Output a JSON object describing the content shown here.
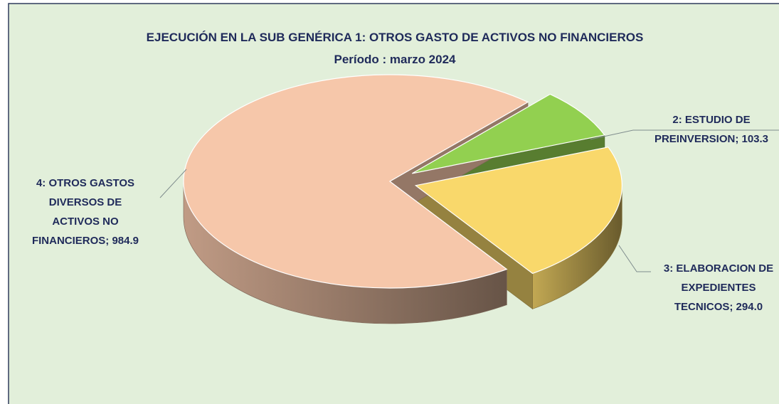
{
  "chart_data": {
    "type": "pie",
    "title": "EJECUCIÓN EN LA SUB GENÉRICA 1: OTROS GASTO DE ACTIVOS NO FINANCIEROS",
    "subtitle": "Período :  marzo 2024",
    "values": [
      103.3,
      294.0,
      984.9
    ],
    "value_labels": [
      "2: ESTUDIO DE PREINVERSION; 103.3",
      "3: ELABORACION DE EXPEDIENTES TECNICOS; 294.0",
      "4: OTROS GASTOS DIVERSOS DE ACTIVOS NO FINANCIEROS; 984.9"
    ],
    "colors": [
      "#92d050",
      "#f9d86b",
      "#f6c7aa"
    ]
  }
}
